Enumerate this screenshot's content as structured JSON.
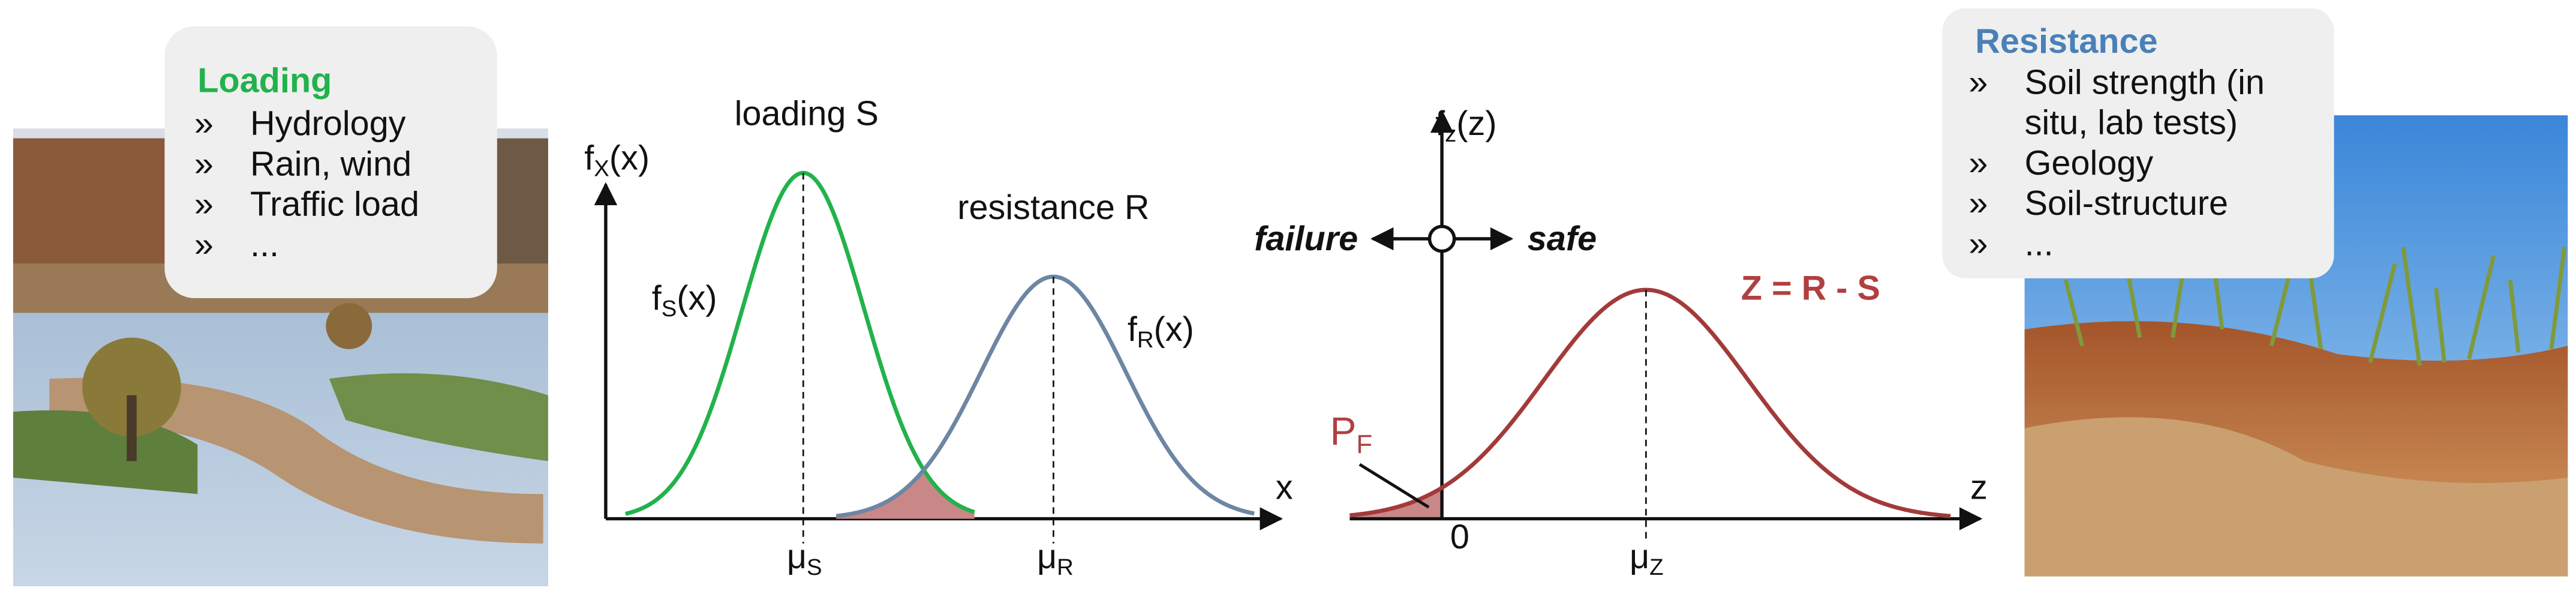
{
  "loading_box": {
    "title": "Loading",
    "bullet": "»",
    "items": [
      [
        "Hydrology"
      ],
      [
        "Rain, wind"
      ],
      [
        "Traffic load"
      ],
      [
        "..."
      ]
    ]
  },
  "resistance_box": {
    "title": "Resistance",
    "bullet": "»",
    "items": [
      [
        "Soil strength (in",
        "situ, lab tests)"
      ],
      [
        "Geology"
      ],
      [
        "Soil-structure"
      ],
      [
        "..."
      ]
    ]
  },
  "chart_sr": {
    "y_label": {
      "main": "f",
      "sub": "X",
      "rest": "(x)"
    },
    "x_label": "x",
    "loading_label": "loading S",
    "resistance_label": "resistance R",
    "fs_label": {
      "main": "f",
      "sub": "S",
      "rest": "(x)"
    },
    "fr_label": {
      "main": "f",
      "sub": "R",
      "rest": "(x)"
    },
    "mu_s": {
      "main": "μ",
      "sub": "S"
    },
    "mu_r": {
      "main": "μ",
      "sub": "R"
    }
  },
  "chart_z": {
    "y_label": {
      "main": "f",
      "sub": "z",
      "rest": "(z)"
    },
    "x_label": "z",
    "failure": "failure",
    "safe": "safe",
    "z_label": "Z = R - S",
    "pf": {
      "main": "P",
      "sub": "F"
    },
    "zero": "0",
    "mu_z": {
      "main": "μ",
      "sub": "Z"
    }
  }
}
